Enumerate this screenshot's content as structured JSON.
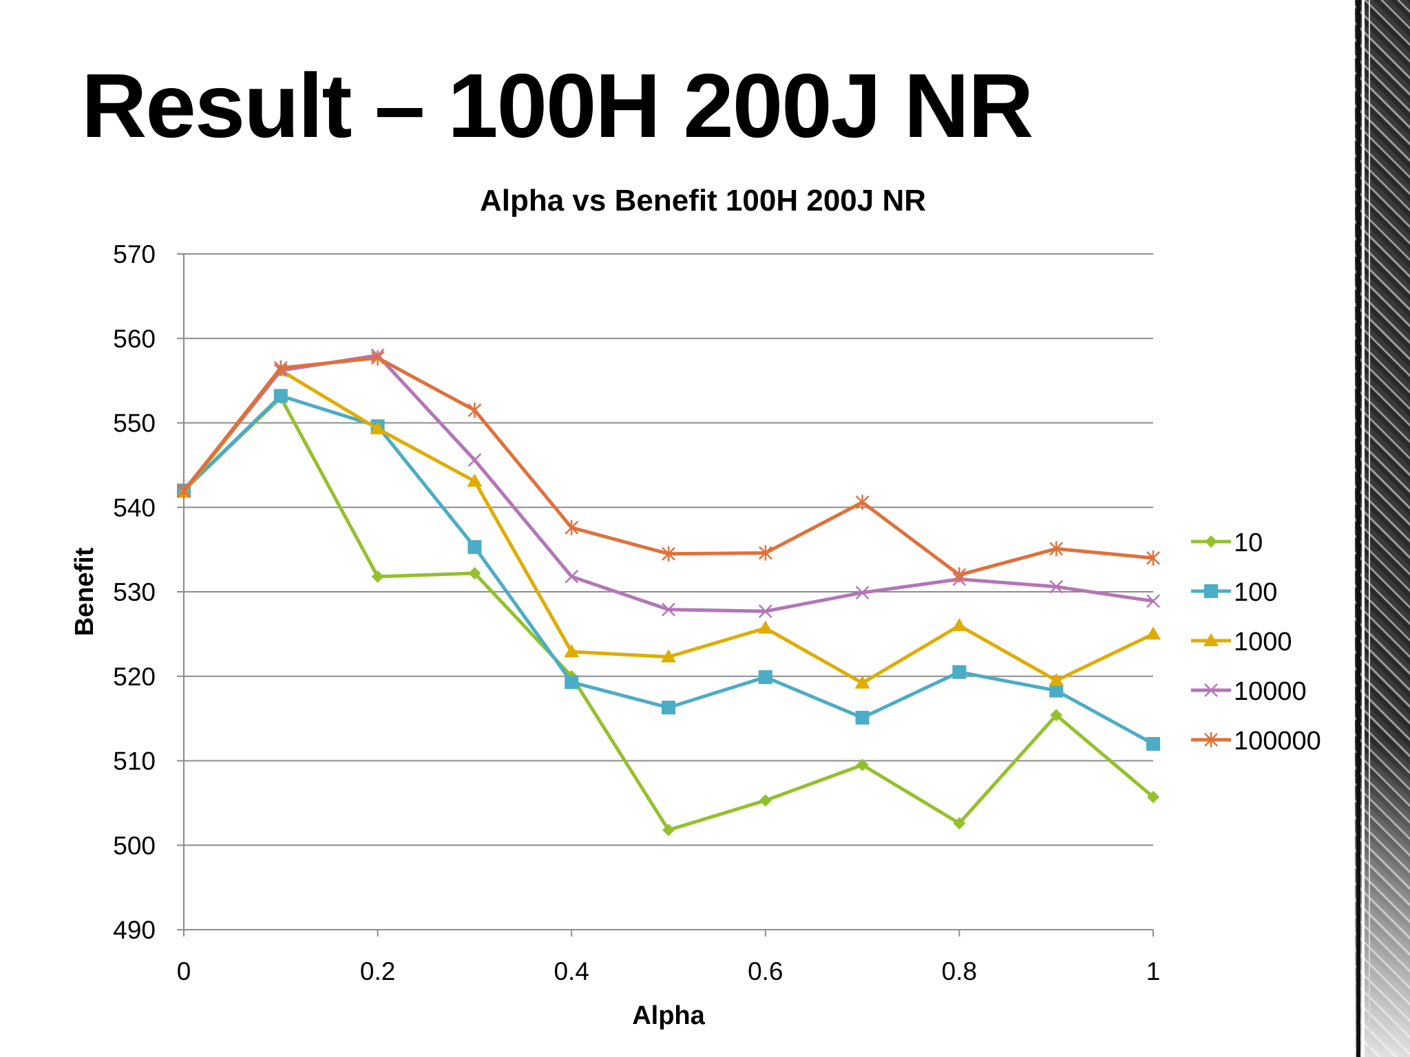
{
  "slide": {
    "title": "Result – 100H 200J NR"
  },
  "chart_data": {
    "type": "line",
    "title": "Alpha vs Benefit 100H 200J NR",
    "xlabel": "Alpha",
    "ylabel": "Benefit",
    "x": [
      0,
      0.1,
      0.2,
      0.3,
      0.4,
      0.5,
      0.6,
      0.7,
      0.8,
      0.9,
      1
    ],
    "xticks": [
      "0",
      "0.2",
      "0.4",
      "0.6",
      "0.8",
      "1"
    ],
    "xtick_values": [
      0,
      0.2,
      0.4,
      0.6,
      0.8,
      1
    ],
    "yticks": [
      "490",
      "500",
      "510",
      "520",
      "530",
      "540",
      "550",
      "560",
      "570"
    ],
    "xlim": [
      0,
      1
    ],
    "ylim": [
      490,
      570
    ],
    "grid": true,
    "legend_position": "right",
    "series": [
      {
        "name": "10",
        "color": "#93c12b",
        "marker": "diamond",
        "values": [
          542,
          553,
          531.8,
          532.2,
          520,
          501.8,
          505.3,
          509.5,
          502.6,
          515.4,
          505.7
        ]
      },
      {
        "name": "100",
        "color": "#4bacc6",
        "marker": "square",
        "values": [
          542,
          553.2,
          549.6,
          535.3,
          519.3,
          516.3,
          519.9,
          515.1,
          520.5,
          518.3,
          512
        ]
      },
      {
        "name": "1000",
        "color": "#e0ac00",
        "marker": "triangle",
        "values": [
          541.8,
          556.2,
          549.3,
          543.1,
          522.9,
          522.3,
          525.7,
          519.2,
          526,
          519.5,
          525
        ]
      },
      {
        "name": "10000",
        "color": "#b375b8",
        "marker": "x",
        "values": [
          542,
          556.2,
          558,
          545.6,
          531.8,
          527.9,
          527.7,
          529.9,
          531.5,
          530.6,
          528.9
        ]
      },
      {
        "name": "100000",
        "color": "#e0703a",
        "marker": "star",
        "values": [
          541.9,
          556.5,
          557.7,
          551.5,
          537.6,
          534.5,
          534.6,
          540.6,
          532,
          535.1,
          534
        ]
      }
    ]
  }
}
